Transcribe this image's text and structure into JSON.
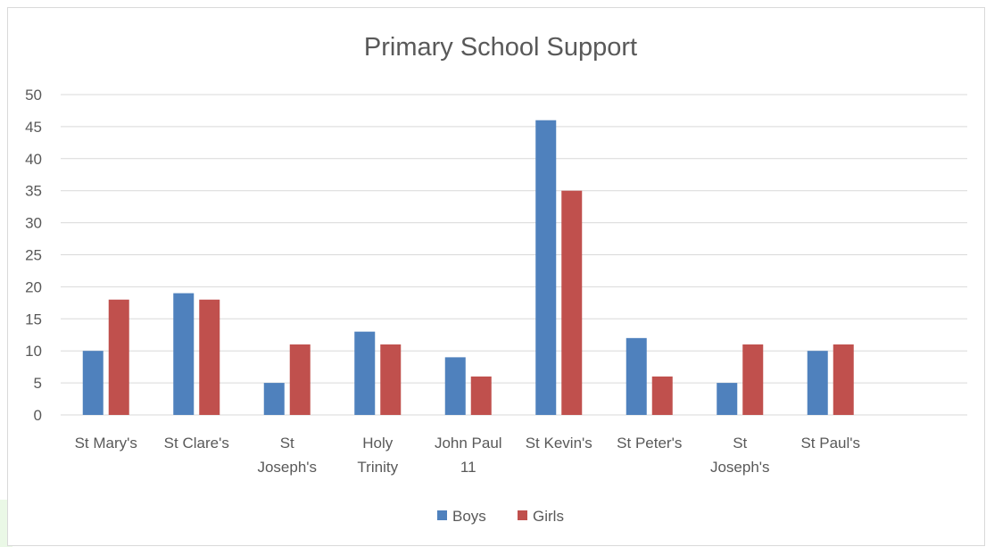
{
  "chart_data": {
    "type": "bar",
    "title": "Primary  School Support",
    "xlabel": "",
    "ylabel": "",
    "ylim": [
      0,
      50
    ],
    "yticks": [
      "0",
      "5",
      "10",
      "15",
      "20",
      "25",
      "30",
      "35",
      "40",
      "45",
      "50"
    ],
    "grid": true,
    "legend_position": "bottom",
    "categories": [
      [
        "St Mary's"
      ],
      [
        "St Clare's"
      ],
      [
        "St",
        "Joseph's"
      ],
      [
        "Holy",
        "Trinity"
      ],
      [
        "John Paul",
        "11"
      ],
      [
        "St Kevin's"
      ],
      [
        "St Peter's"
      ],
      [
        "St",
        "Joseph's"
      ],
      [
        "St Paul's"
      ]
    ],
    "series": [
      {
        "name": "Boys",
        "color": "#4f81bd",
        "values": [
          10,
          19,
          5,
          13,
          9,
          46,
          12,
          5,
          10
        ]
      },
      {
        "name": "Girls",
        "color": "#c0504d",
        "values": [
          18,
          18,
          11,
          11,
          6,
          35,
          6,
          11,
          11
        ]
      }
    ]
  }
}
